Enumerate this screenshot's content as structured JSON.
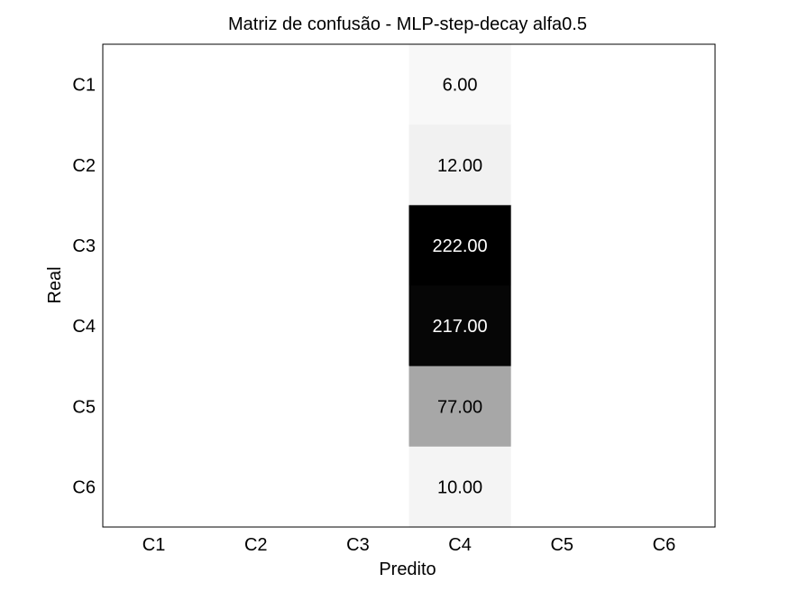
{
  "chart_data": {
    "type": "heatmap",
    "title": "Matriz de confusão - MLP-step-decay alfa0.5",
    "xlabel": "Predito",
    "ylabel": "Real",
    "x_categories": [
      "C1",
      "C2",
      "C3",
      "C4",
      "C5",
      "C6"
    ],
    "y_categories": [
      "C1",
      "C2",
      "C3",
      "C4",
      "C5",
      "C6"
    ],
    "values": [
      [
        0,
        0,
        0,
        6,
        0,
        0
      ],
      [
        0,
        0,
        0,
        12,
        0,
        0
      ],
      [
        0,
        0,
        0,
        222,
        0,
        0
      ],
      [
        0,
        0,
        0,
        217,
        0,
        0
      ],
      [
        0,
        0,
        0,
        77,
        0,
        0
      ],
      [
        0,
        0,
        0,
        10,
        0,
        0
      ]
    ],
    "cell_labels": [
      [
        null,
        null,
        null,
        "6.00",
        null,
        null
      ],
      [
        null,
        null,
        null,
        "12.00",
        null,
        null
      ],
      [
        null,
        null,
        null,
        "222.00",
        null,
        null
      ],
      [
        null,
        null,
        null,
        "217.00",
        null,
        null
      ],
      [
        null,
        null,
        null,
        "77.00",
        null,
        null
      ],
      [
        null,
        null,
        null,
        "10.00",
        null,
        null
      ]
    ],
    "value_range": [
      0,
      222
    ],
    "colormap": "gray_r",
    "grid": false,
    "colors": {
      "background": "#ffffff",
      "axis": "#000000"
    }
  }
}
